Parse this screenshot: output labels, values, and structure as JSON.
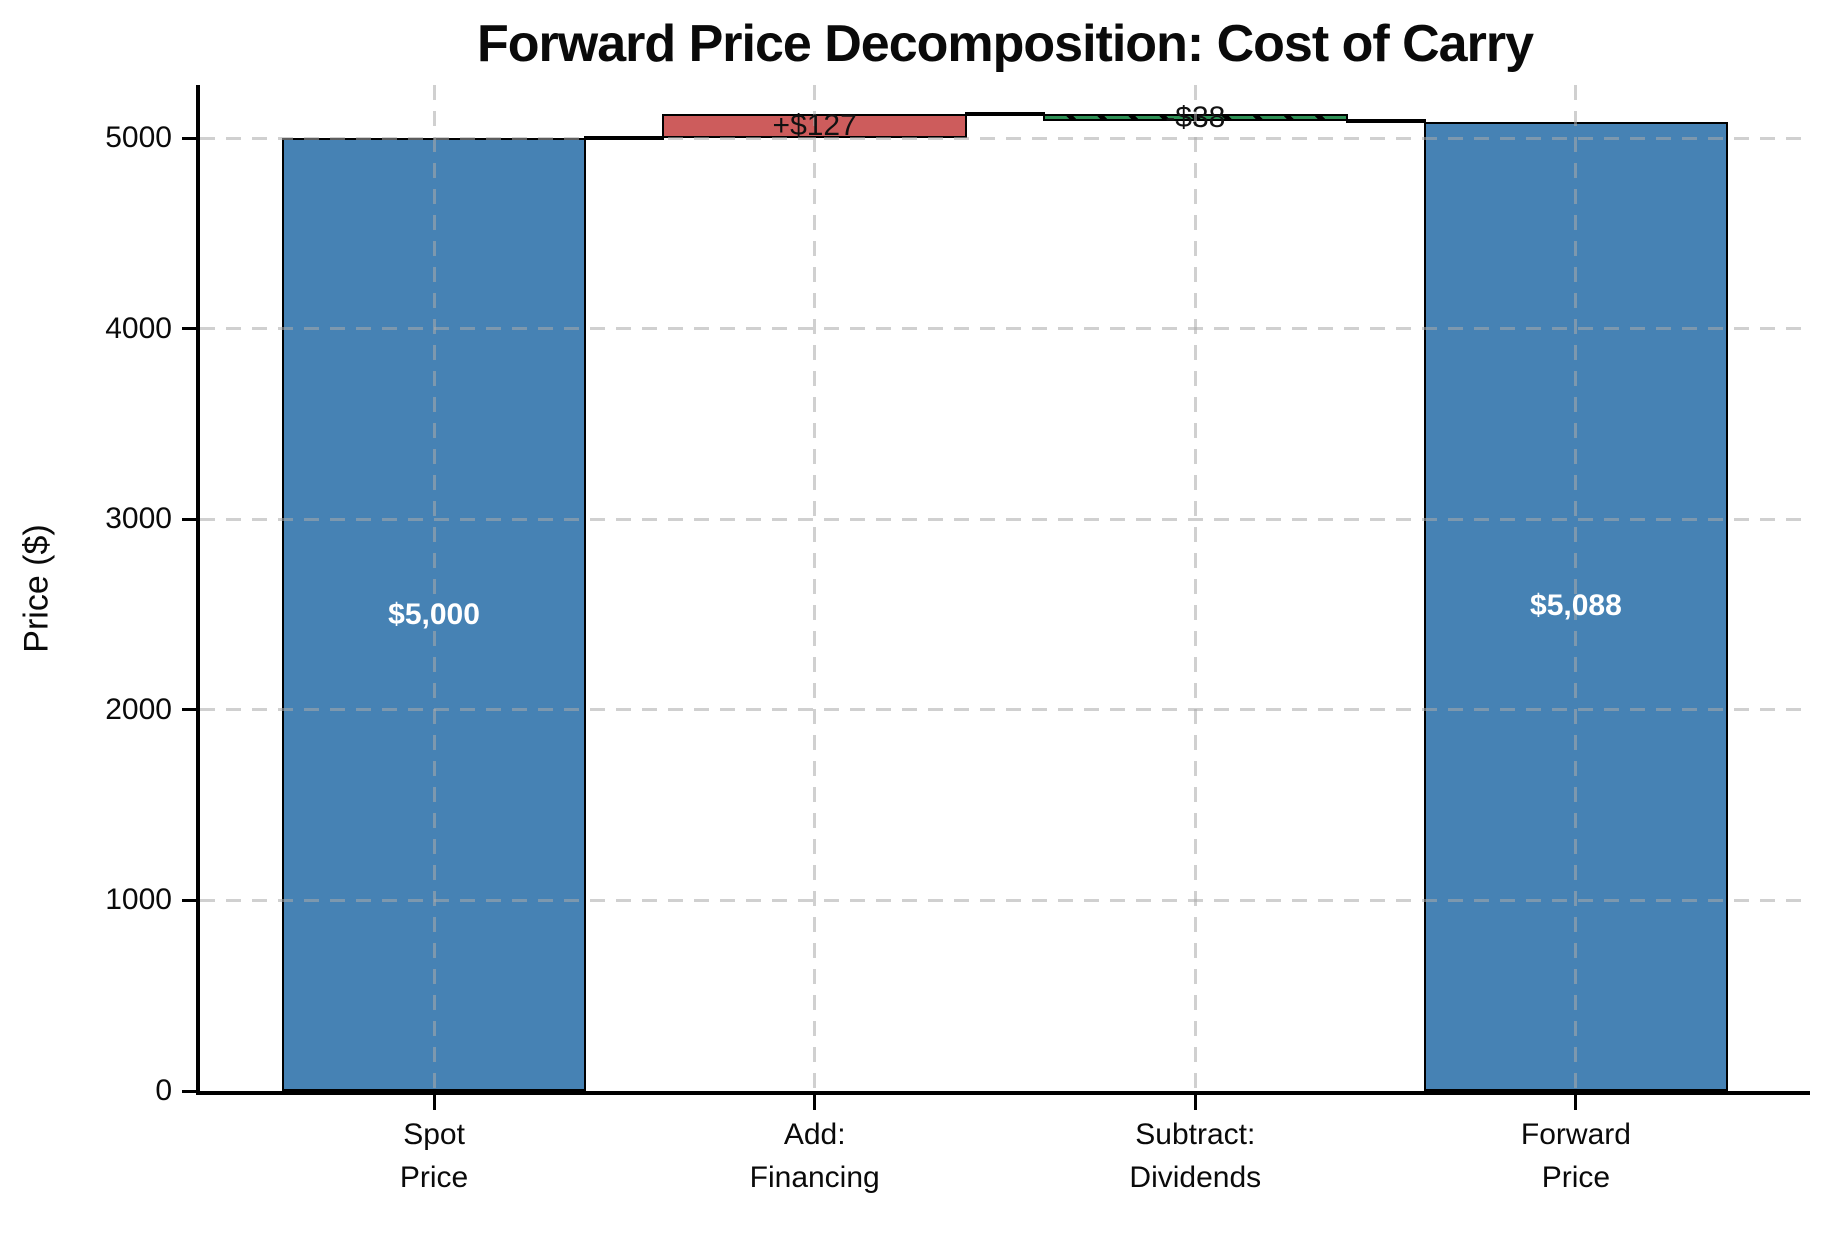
{
  "figure": {
    "background": "#ffffff"
  },
  "chart_data": {
    "type": "bar",
    "subtype": "waterfall",
    "title": "Forward Price Decomposition: Cost of Carry",
    "ylabel": "Price ($)",
    "xlabel": "",
    "ylim": [
      0,
      5280
    ],
    "yticks": [
      0,
      1000,
      2000,
      3000,
      4000,
      5000
    ],
    "grid": {
      "visible": true,
      "style": "dashed",
      "horizontal": true,
      "vertical": true,
      "drawn_above_bars": true
    },
    "legend": null,
    "categories": [
      {
        "lines": [
          "Spot",
          "Price"
        ]
      },
      {
        "lines": [
          "Add:",
          "Financing"
        ]
      },
      {
        "lines": [
          "Subtract:",
          "Dividends"
        ]
      },
      {
        "lines": [
          "Forward",
          "Price"
        ]
      }
    ],
    "bars": [
      {
        "name": "spot-price",
        "kind": "total",
        "from": 0,
        "to": 5000,
        "value": 5000,
        "label": "$5,000",
        "color": "#4682B4",
        "hatch": false
      },
      {
        "name": "add-financing",
        "kind": "increase",
        "from": 5000,
        "to": 5127,
        "value": 127,
        "label": "+$127",
        "color": "#CD5C5C",
        "hatch": false
      },
      {
        "name": "subtract-dividends",
        "kind": "decrease",
        "from": 5127,
        "to": 5089,
        "value": -38,
        "label": "-$38",
        "color": "#2F9156",
        "hatch": true
      },
      {
        "name": "forward-price",
        "kind": "total",
        "from": 0,
        "to": 5088,
        "value": 5088,
        "label": "$5,088",
        "color": "#4682B4",
        "hatch": false
      }
    ],
    "connectors": [
      {
        "level": 5000,
        "from_bar": 0,
        "to_bar": 1
      },
      {
        "level": 5127,
        "from_bar": 1,
        "to_bar": 2
      },
      {
        "level": 5089,
        "from_bar": 2,
        "to_bar": 3
      }
    ],
    "colors": {
      "total_bar": "#4682B4",
      "increase_bar": "#CD5C5C",
      "decrease_bar": "#2F9156",
      "bar_edge": "#000000",
      "connector": "#000000",
      "grid": "#aaaaaa",
      "text": "#0a0a0a",
      "total_label_text": "#ffffff"
    }
  }
}
